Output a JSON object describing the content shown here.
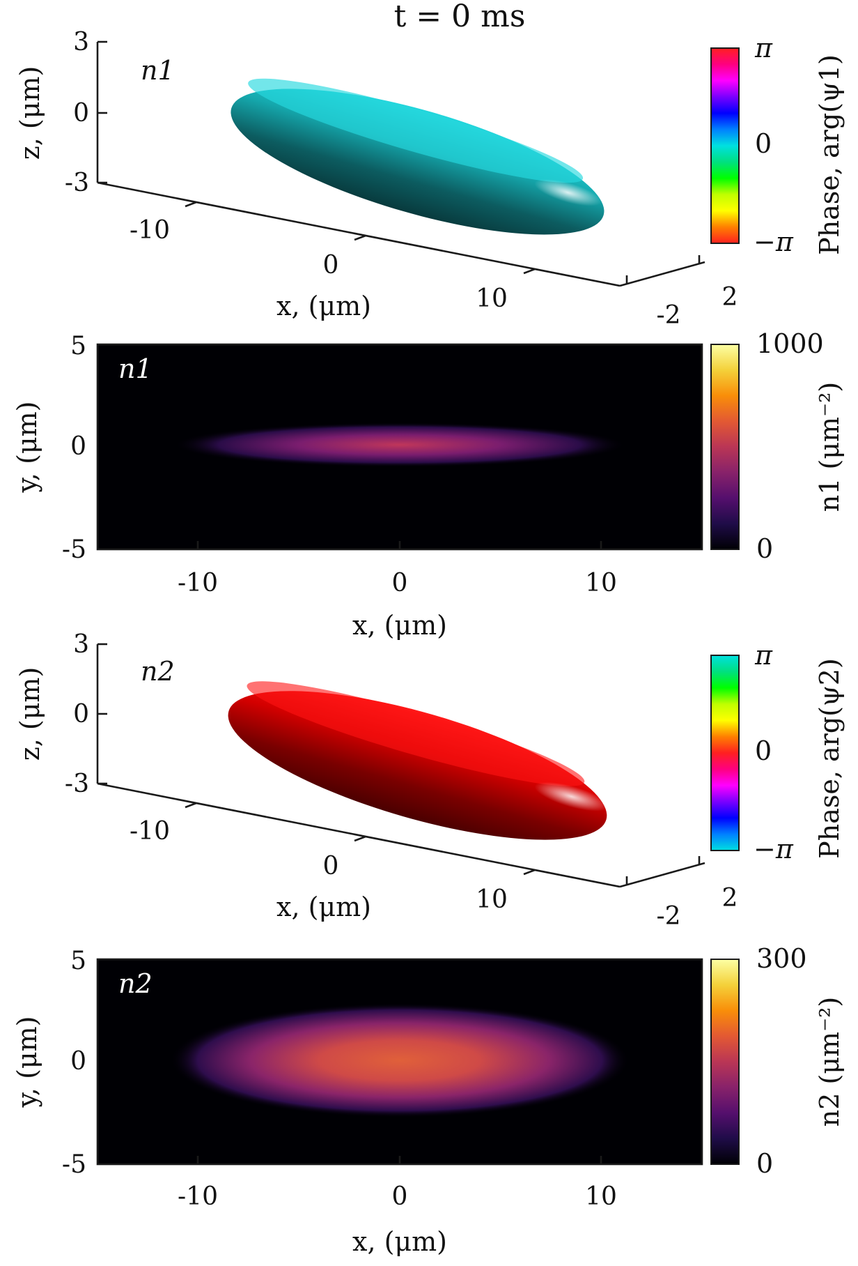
{
  "title": "t = 0 ms",
  "chart_data": [
    {
      "type": "isosurface-3d",
      "label": "n1",
      "surface_color": "#19c4cc",
      "x_ticks": [
        "-10",
        "0",
        "10"
      ],
      "y_ticks": [
        "-2",
        "2"
      ],
      "z_ticks": [
        "3",
        "0",
        "-3"
      ],
      "xlabel": "x, (μm)",
      "zlabel": "z, (μm)",
      "colorbar": {
        "label": "Phase, arg(ψ1)",
        "ticks": [
          "π",
          "0",
          "−π"
        ],
        "colors": [
          "#ff2020",
          "#ff0080",
          "#ff00ff",
          "#7a00ff",
          "#0000ff",
          "#0080ff",
          "#00e0e0",
          "#00e080",
          "#00ff00",
          "#c0ff00",
          "#ffff00",
          "#ff8000",
          "#ff2020"
        ]
      }
    },
    {
      "type": "heatmap",
      "label": "n1",
      "x_ticks": [
        "-10",
        "0",
        "10"
      ],
      "y_ticks": [
        "5",
        "0",
        "-5"
      ],
      "xlabel": "x, (μm)",
      "ylabel": "y, (μm)",
      "xlim": [
        -15,
        15
      ],
      "ylim": [
        -5,
        5
      ],
      "cloud": {
        "center": [
          0,
          0
        ],
        "x_half_width": 11,
        "y_half_width": 0.8,
        "peak_density": 450
      },
      "colorbar": {
        "label": "n1 (μm⁻²)",
        "ticks": [
          "1000",
          "0"
        ],
        "range": [
          0,
          1000
        ],
        "colors": [
          "#000004",
          "#1f0c48",
          "#550f6d",
          "#88226a",
          "#ba3655",
          "#e35933",
          "#f98e09",
          "#f4d13a",
          "#fcffa4"
        ]
      }
    },
    {
      "type": "isosurface-3d",
      "label": "n2",
      "surface_color": "#e00000",
      "x_ticks": [
        "-10",
        "0",
        "10"
      ],
      "y_ticks": [
        "-2",
        "2"
      ],
      "z_ticks": [
        "3",
        "0",
        "-3"
      ],
      "xlabel": "x, (μm)",
      "zlabel": "z, (μm)",
      "colorbar": {
        "label": "Phase, arg(ψ2)",
        "ticks": [
          "π",
          "0",
          "−π"
        ],
        "colors": [
          "#00e0e0",
          "#00e080",
          "#00ff00",
          "#c0ff00",
          "#ffff00",
          "#ff8000",
          "#ff2020",
          "#ff0080",
          "#ff00ff",
          "#7a00ff",
          "#0000ff",
          "#0080ff",
          "#00e0e0"
        ]
      }
    },
    {
      "type": "heatmap",
      "label": "n2",
      "x_ticks": [
        "-10",
        "0",
        "10"
      ],
      "y_ticks": [
        "5",
        "0",
        "-5"
      ],
      "xlabel": "x, (μm)",
      "ylabel": "y, (μm)",
      "xlim": [
        -15,
        15
      ],
      "ylim": [
        -5,
        5
      ],
      "cloud": {
        "center": [
          0,
          0
        ],
        "x_half_width": 11,
        "y_half_width": 2.3,
        "peak_density": 190
      },
      "colorbar": {
        "label": "n2 (μm⁻²)",
        "ticks": [
          "300",
          "0"
        ],
        "range": [
          0,
          300
        ],
        "colors": [
          "#000004",
          "#1f0c48",
          "#550f6d",
          "#88226a",
          "#ba3655",
          "#e35933",
          "#f98e09",
          "#f4d13a",
          "#fcffa4"
        ]
      }
    }
  ]
}
